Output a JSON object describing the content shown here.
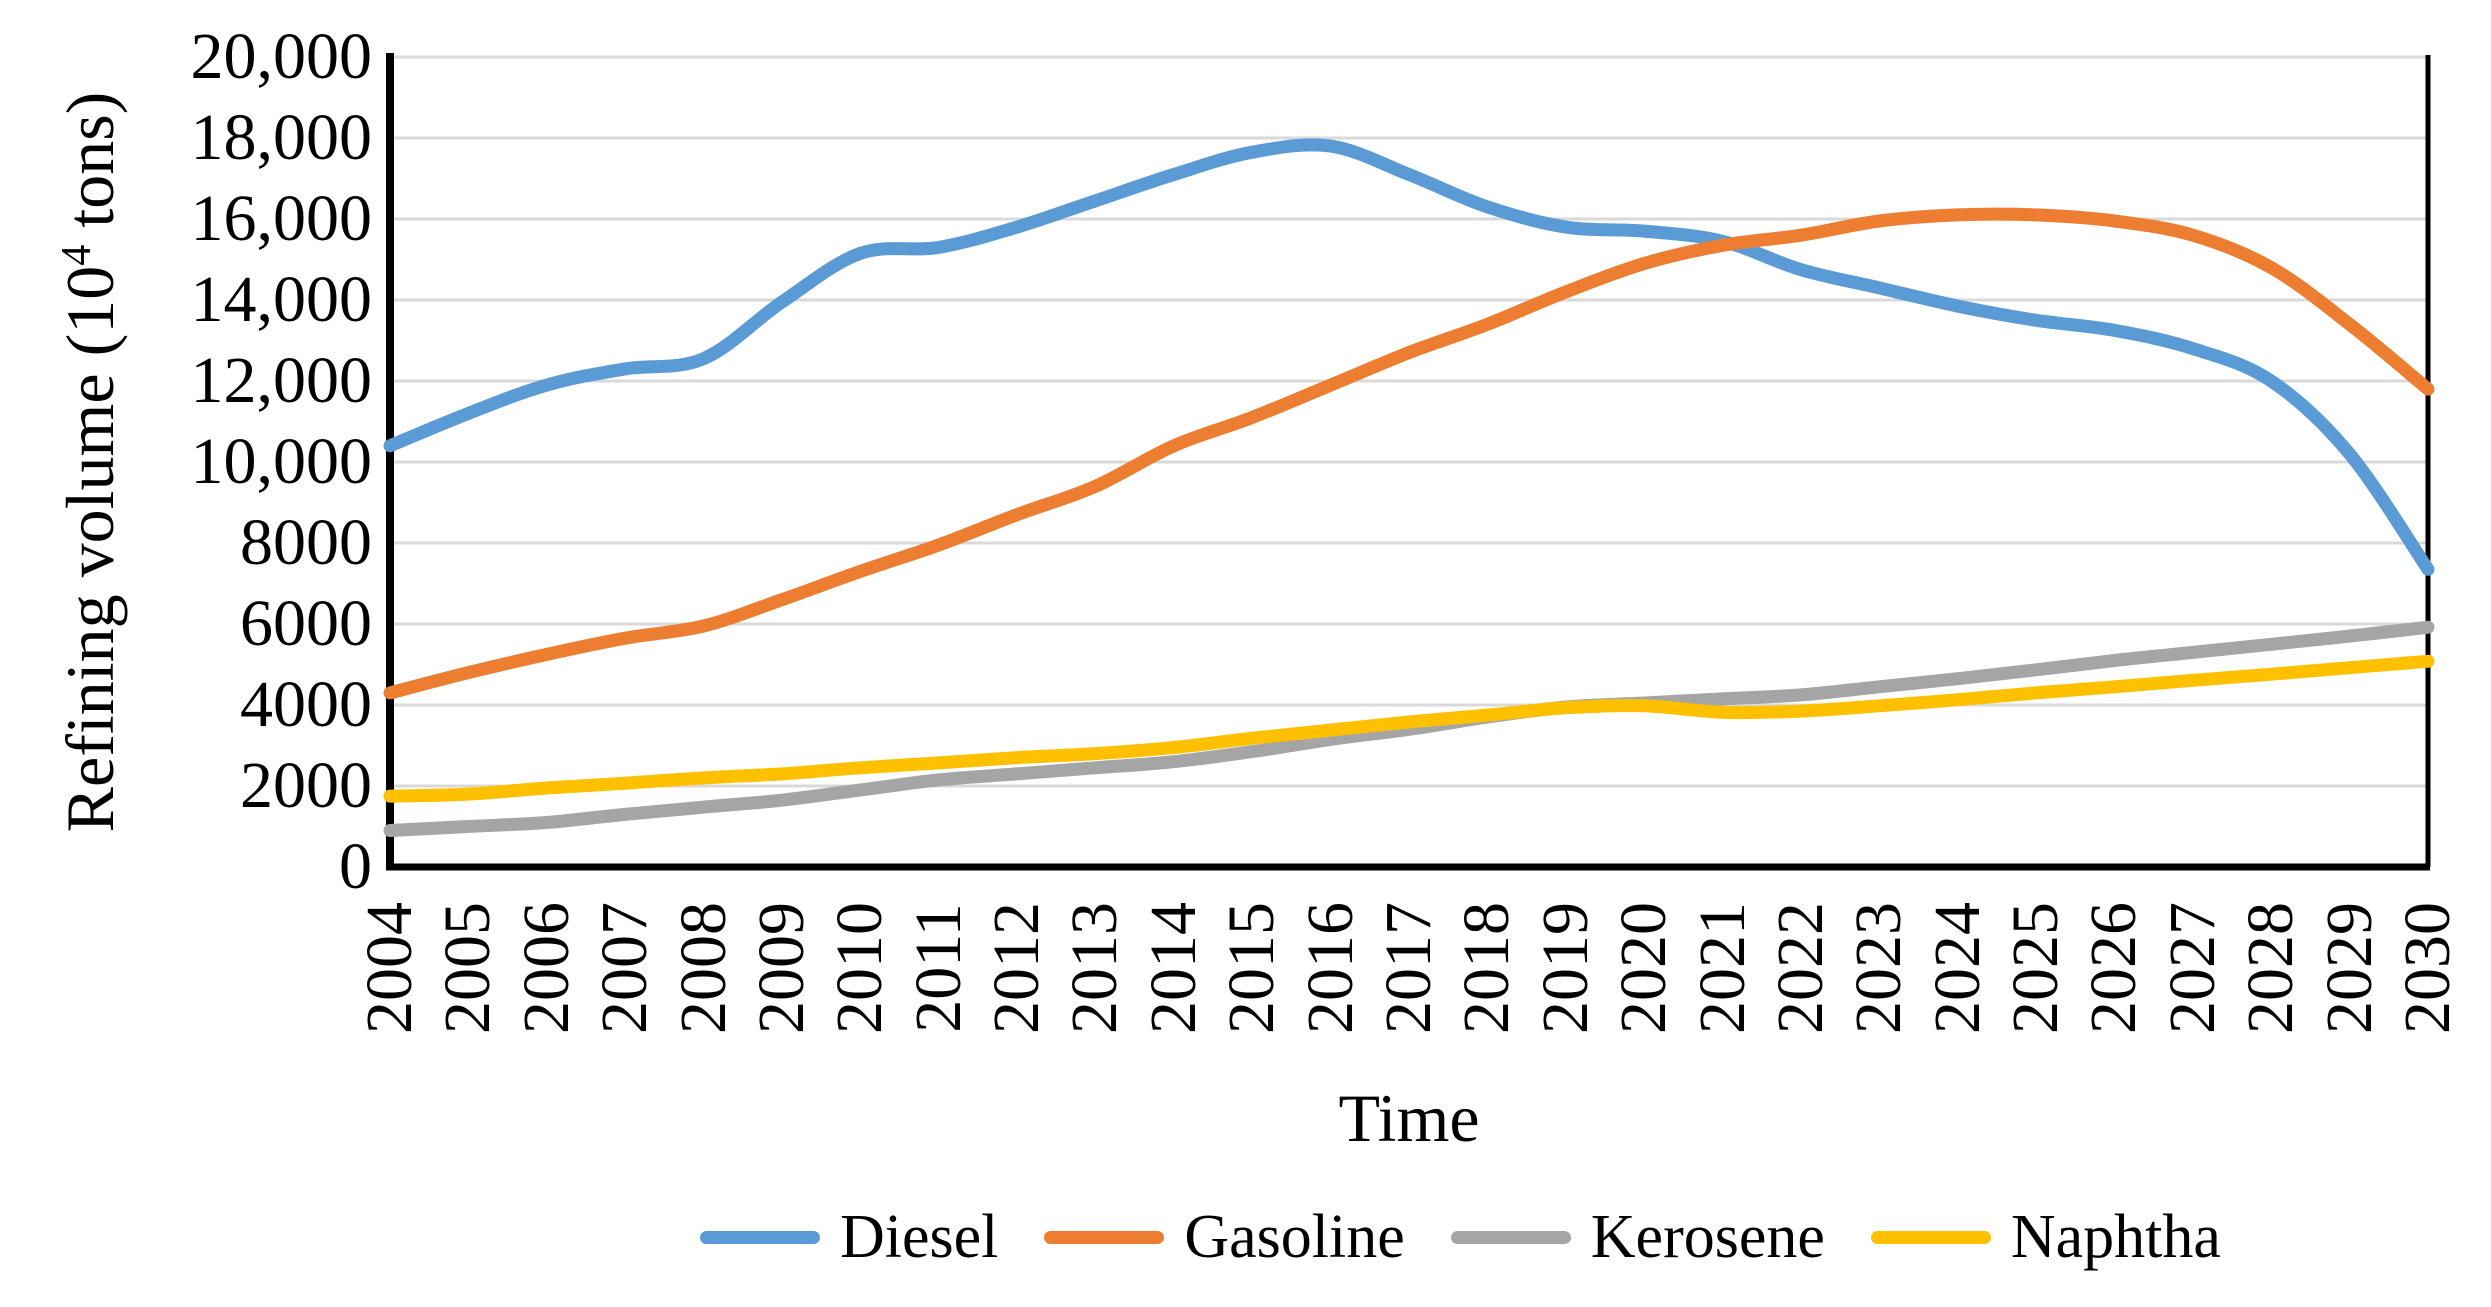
{
  "chart_data": {
    "type": "line",
    "title": "",
    "xlabel": "Time",
    "ylabel": "Refining volume (10⁴ tons)",
    "ylabel_parts": {
      "prefix": "Refining volume (10",
      "sup": "4",
      "suffix": " tons)"
    },
    "x_categories": [
      "2004",
      "2005",
      "2006",
      "2007",
      "2008",
      "2009",
      "2010",
      "2011",
      "2012",
      "2013",
      "2014",
      "2015",
      "2016",
      "2017",
      "2018",
      "2019",
      "2020",
      "2021",
      "2022",
      "2023",
      "2024",
      "2025",
      "2026",
      "2027",
      "2028",
      "2029",
      "2030"
    ],
    "y_tick_labels": [
      "20,000",
      "18,000",
      "16,000",
      "14,000",
      "12,000",
      "10,000",
      "8000",
      "6000",
      "4000",
      "2000",
      "0"
    ],
    "ylim": [
      0,
      20000
    ],
    "y_major_step": 2000,
    "grid": true,
    "legend_position": "bottom",
    "series": [
      {
        "name": "Diesel",
        "color": "#5B9BD5",
        "values": [
          10400,
          11200,
          11900,
          12300,
          12550,
          13950,
          15150,
          15300,
          15800,
          16450,
          17100,
          17650,
          17800,
          17100,
          16300,
          15800,
          15700,
          15450,
          14750,
          14300,
          13850,
          13500,
          13250,
          12800,
          12000,
          10200,
          7350
        ]
      },
      {
        "name": "Gasoline",
        "color": "#ED7D31",
        "values": [
          4300,
          4800,
          5250,
          5650,
          5950,
          6600,
          7300,
          7950,
          8700,
          9400,
          10400,
          11100,
          11900,
          12700,
          13400,
          14200,
          14900,
          15350,
          15600,
          15950,
          16100,
          16100,
          15950,
          15600,
          14800,
          13400,
          11800
        ]
      },
      {
        "name": "Kerosene",
        "color": "#A5A5A5",
        "values": [
          900,
          1000,
          1100,
          1300,
          1480,
          1650,
          1900,
          2150,
          2300,
          2450,
          2600,
          2850,
          3150,
          3400,
          3700,
          3950,
          4050,
          4150,
          4250,
          4450,
          4650,
          4870,
          5100,
          5300,
          5500,
          5700,
          5920
        ]
      },
      {
        "name": "Naphtha",
        "color": "#FFC000",
        "values": [
          1750,
          1800,
          1950,
          2070,
          2200,
          2300,
          2450,
          2570,
          2700,
          2800,
          2950,
          3180,
          3380,
          3580,
          3750,
          3930,
          3980,
          3820,
          3850,
          3980,
          4130,
          4300,
          4450,
          4610,
          4760,
          4920,
          5080
        ]
      }
    ]
  }
}
